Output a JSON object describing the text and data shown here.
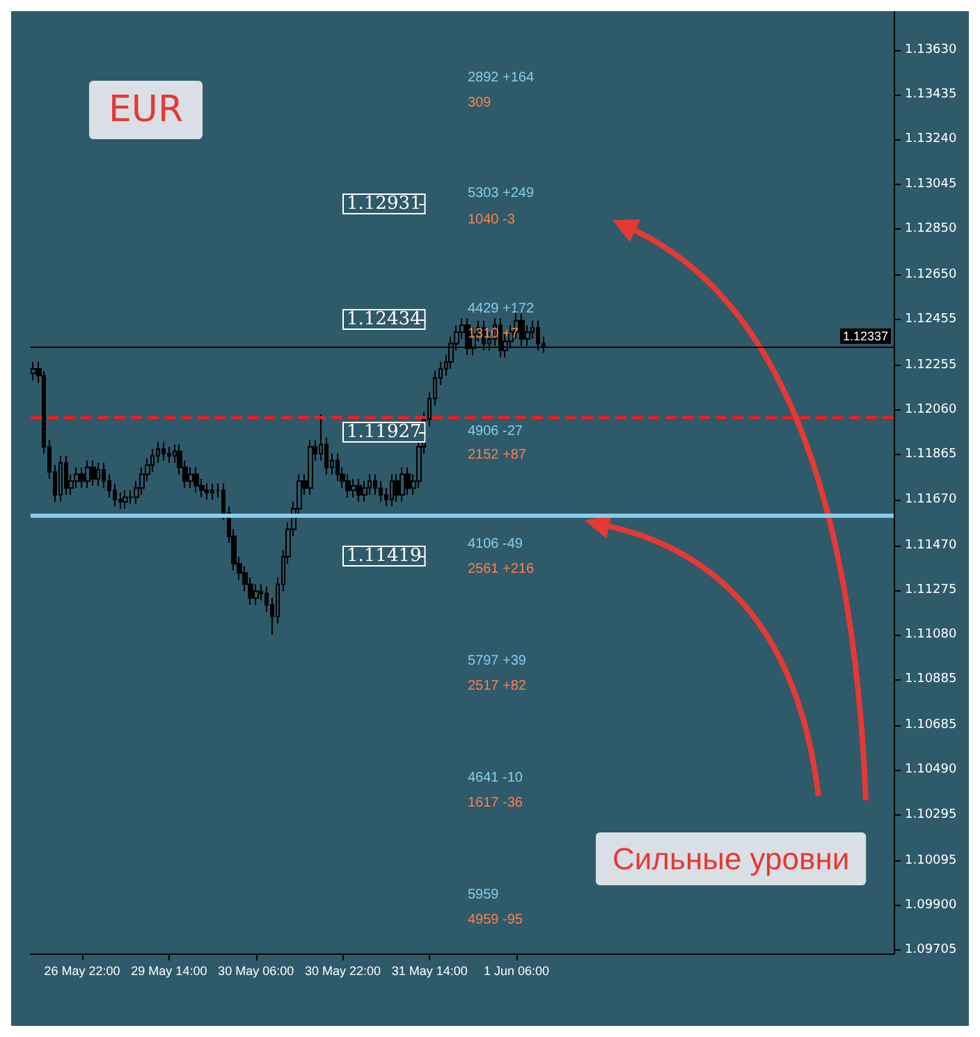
{
  "chart_data": {
    "type": "candlestick",
    "title": "EUR",
    "color": "#000000",
    "grid": false,
    "categories": [
      null,
      null,
      null,
      null,
      null,
      null,
      null,
      null,
      null,
      "26 May 22:00",
      null,
      null,
      null,
      null,
      null,
      null,
      null,
      null,
      null,
      null,
      null,
      null,
      null,
      null,
      null,
      "29 May 14:00",
      null,
      null,
      null,
      null,
      null,
      null,
      null,
      null,
      null,
      null,
      null,
      null,
      null,
      null,
      null,
      "30 May 06:00",
      null,
      null,
      null,
      null,
      null,
      null,
      null,
      null,
      null,
      null,
      null,
      null,
      null,
      null,
      null,
      "30 May 22:00",
      null,
      null,
      null,
      null,
      null,
      null,
      null,
      null,
      null,
      null,
      null,
      null,
      null,
      null,
      null,
      "31 May 14:00",
      null,
      null,
      null,
      null,
      null,
      null,
      null,
      null,
      null,
      null,
      null,
      null,
      null,
      null,
      null,
      "1 Jun 06:00",
      null,
      null,
      null,
      null,
      null,
      null,
      null,
      null,
      null,
      null,
      null,
      null,
      null,
      null,
      null,
      null,
      null,
      null,
      null,
      null,
      null,
      null,
      null,
      null,
      null,
      null,
      null,
      null,
      null,
      null,
      null,
      null,
      null,
      null,
      null,
      null,
      null,
      null,
      null,
      null,
      null,
      null,
      null,
      null,
      null,
      null,
      null,
      null,
      null,
      null,
      null,
      null,
      null,
      null,
      null,
      null,
      null,
      null,
      null,
      null,
      null,
      null,
      null,
      null,
      null,
      null,
      null,
      null,
      null
    ],
    "ohlc": [
      [
        1.1222,
        1.1227,
        1.1219,
        1.1224
      ],
      [
        1.1224,
        1.1227,
        1.1218,
        1.1221
      ],
      [
        1.1221,
        1.1223,
        1.1187,
        1.119
      ],
      [
        1.119,
        1.1193,
        1.1176,
        1.1179
      ],
      [
        1.1179,
        1.1182,
        1.1166,
        1.1169
      ],
      [
        1.1169,
        1.1186,
        1.1166,
        1.1183
      ],
      [
        1.1183,
        1.1186,
        1.1169,
        1.1172
      ],
      [
        1.1172,
        1.1178,
        1.1169,
        1.1175
      ],
      [
        1.1175,
        1.1181,
        1.1172,
        1.1178
      ],
      [
        1.1178,
        1.1181,
        1.1172,
        1.1175
      ],
      [
        1.1175,
        1.1184,
        1.1172,
        1.1181
      ],
      [
        1.1181,
        1.1184,
        1.1173,
        1.1176
      ],
      [
        1.1176,
        1.1183,
        1.1173,
        1.118
      ],
      [
        1.118,
        1.1183,
        1.1172,
        1.1175
      ],
      [
        1.1175,
        1.1178,
        1.1168,
        1.1171
      ],
      [
        1.1171,
        1.1174,
        1.1164,
        1.1167
      ],
      [
        1.1167,
        1.117,
        1.1163,
        1.1166
      ],
      [
        1.1166,
        1.1171,
        1.1163,
        1.1168
      ],
      [
        1.1168,
        1.1171,
        1.1165,
        1.1168
      ],
      [
        1.1168,
        1.1175,
        1.1165,
        1.1172
      ],
      [
        1.1172,
        1.1181,
        1.1169,
        1.1178
      ],
      [
        1.1178,
        1.1185,
        1.1175,
        1.1182
      ],
      [
        1.1182,
        1.1189,
        1.1179,
        1.1186
      ],
      [
        1.1186,
        1.1192,
        1.1183,
        1.1189
      ],
      [
        1.1189,
        1.1192,
        1.1184,
        1.1187
      ],
      [
        1.1187,
        1.119,
        1.1183,
        1.1186
      ],
      [
        1.1186,
        1.1191,
        1.1183,
        1.1188
      ],
      [
        1.1188,
        1.1191,
        1.1178,
        1.1181
      ],
      [
        1.1181,
        1.1184,
        1.1172,
        1.1175
      ],
      [
        1.1175,
        1.1181,
        1.1172,
        1.1178
      ],
      [
        1.1178,
        1.1181,
        1.117,
        1.1173
      ],
      [
        1.1173,
        1.1176,
        1.1168,
        1.1171
      ],
      [
        1.1171,
        1.1174,
        1.1167,
        1.117
      ],
      [
        1.117,
        1.1174,
        1.1167,
        1.1171
      ],
      [
        1.1171,
        1.1174,
        1.1168,
        1.1171
      ],
      [
        1.1171,
        1.1174,
        1.1158,
        1.1161
      ],
      [
        1.1161,
        1.1164,
        1.1148,
        1.1151
      ],
      [
        1.1151,
        1.1154,
        1.1136,
        1.1139
      ],
      [
        1.1139,
        1.1142,
        1.1132,
        1.1135
      ],
      [
        1.1135,
        1.1138,
        1.1127,
        1.113
      ],
      [
        1.113,
        1.1133,
        1.1121,
        1.1124
      ],
      [
        1.1124,
        1.113,
        1.1121,
        1.1127
      ],
      [
        1.1127,
        1.113,
        1.1123,
        1.1126
      ],
      [
        1.1126,
        1.1129,
        1.1118,
        1.1121
      ],
      [
        1.1121,
        1.1124,
        1.1108,
        1.1116
      ],
      [
        1.1116,
        1.1133,
        1.1113,
        1.113
      ],
      [
        1.113,
        1.1145,
        1.1127,
        1.1142
      ],
      [
        1.1142,
        1.1157,
        1.1139,
        1.1154
      ],
      [
        1.1154,
        1.1166,
        1.1151,
        1.1163
      ],
      [
        1.1163,
        1.1178,
        1.116,
        1.1175
      ],
      [
        1.1175,
        1.1178,
        1.1169,
        1.1172
      ],
      [
        1.1172,
        1.1193,
        1.1169,
        1.119
      ],
      [
        1.119,
        1.1193,
        1.1184,
        1.1187
      ],
      [
        1.1187,
        1.1204,
        1.1184,
        1.1191
      ],
      [
        1.1191,
        1.1194,
        1.1178,
        1.1181
      ],
      [
        1.1181,
        1.1187,
        1.1178,
        1.1184
      ],
      [
        1.1184,
        1.1187,
        1.1175,
        1.1178
      ],
      [
        1.1178,
        1.1181,
        1.1172,
        1.1175
      ],
      [
        1.1175,
        1.1178,
        1.1168,
        1.1171
      ],
      [
        1.1171,
        1.1176,
        1.1168,
        1.1173
      ],
      [
        1.1173,
        1.1176,
        1.1166,
        1.1169
      ],
      [
        1.1169,
        1.1175,
        1.1166,
        1.1172
      ],
      [
        1.1172,
        1.1178,
        1.1169,
        1.1175
      ],
      [
        1.1175,
        1.1178,
        1.1169,
        1.1172
      ],
      [
        1.1172,
        1.1175,
        1.1166,
        1.1169
      ],
      [
        1.1169,
        1.1172,
        1.1164,
        1.1167
      ],
      [
        1.1167,
        1.1178,
        1.1164,
        1.1175
      ],
      [
        1.1175,
        1.1178,
        1.1166,
        1.1169
      ],
      [
        1.1169,
        1.1181,
        1.1166,
        1.1178
      ],
      [
        1.1178,
        1.1181,
        1.1169,
        1.1172
      ],
      [
        1.1172,
        1.1178,
        1.1169,
        1.1175
      ],
      [
        1.1175,
        1.1193,
        1.1172,
        1.119
      ],
      [
        1.119,
        1.1205,
        1.1187,
        1.1202
      ],
      [
        1.1202,
        1.1214,
        1.1199,
        1.1211
      ],
      [
        1.1211,
        1.1223,
        1.1208,
        1.122
      ],
      [
        1.122,
        1.1227,
        1.1217,
        1.1224
      ],
      [
        1.1224,
        1.123,
        1.1221,
        1.1227
      ],
      [
        1.1227,
        1.1238,
        1.1224,
        1.1235
      ],
      [
        1.1235,
        1.1243,
        1.1232,
        1.124
      ],
      [
        1.124,
        1.1246,
        1.1237,
        1.1243
      ],
      [
        1.1243,
        1.1246,
        1.123,
        1.1233
      ],
      [
        1.1233,
        1.1242,
        1.123,
        1.1239
      ],
      [
        1.1239,
        1.1245,
        1.1236,
        1.1242
      ],
      [
        1.1242,
        1.1245,
        1.1232,
        1.1235
      ],
      [
        1.1235,
        1.124,
        1.1232,
        1.1237
      ],
      [
        1.1237,
        1.1246,
        1.1234,
        1.1243
      ],
      [
        1.1243,
        1.1246,
        1.1229,
        1.1232
      ],
      [
        1.1232,
        1.1239,
        1.1229,
        1.1236
      ],
      [
        1.1236,
        1.1243,
        1.1233,
        1.124
      ],
      [
        1.124,
        1.125,
        1.1237,
        1.1245
      ],
      [
        1.1245,
        1.1248,
        1.1234,
        1.1237
      ],
      [
        1.1237,
        1.1243,
        1.1234,
        1.124
      ],
      [
        1.124,
        1.1245,
        1.1237,
        1.1242
      ],
      [
        1.1242,
        1.1245,
        1.1232,
        1.1235
      ],
      [
        1.1235,
        1.1238,
        1.1231,
        1.1234
      ],
      null,
      null,
      null,
      null,
      null,
      null,
      null,
      null,
      null,
      null,
      null,
      null,
      null,
      null,
      null,
      null,
      null,
      null,
      null,
      null,
      null,
      null,
      null,
      null,
      null,
      null,
      null,
      null,
      null,
      null,
      null,
      null,
      null,
      null,
      null,
      null,
      null,
      null,
      null,
      null,
      null,
      null,
      null,
      null,
      null,
      null,
      null,
      null,
      null,
      null,
      null,
      null,
      null,
      null,
      null,
      null,
      null,
      null,
      null,
      null,
      null,
      null,
      null,
      null
    ],
    "ylim": [
      1.0969,
      1.138
    ],
    "yticks": [
      1.09705,
      {
        "value": 1.099,
        "label": "1.09900"
      },
      1.10095,
      1.10295,
      {
        "value": 1.1049,
        "label": "1.10490"
      },
      1.10685,
      1.10885,
      {
        "value": 1.1108,
        "label": "1.11080"
      },
      1.11275,
      {
        "value": 1.1147,
        "label": "1.11470"
      },
      {
        "value": 1.1167,
        "label": "1.11670"
      },
      1.11865,
      {
        "value": 1.1206,
        "label": "1.12060"
      },
      1.12255,
      1.12455,
      {
        "value": 1.1265,
        "label": "1.12650"
      },
      {
        "value": 1.1285,
        "label": "1.12850"
      },
      1.13045,
      {
        "value": 1.1324,
        "label": "1.13240"
      },
      1.13435,
      {
        "value": 1.1363,
        "label": "1.13630"
      }
    ],
    "ref_lines": [
      {
        "axis": "y",
        "value": 1.1203,
        "color": "#ff1a1a",
        "line_style": "dashed"
      },
      {
        "axis": "y",
        "value": 1.116,
        "color": "#87ceeb",
        "line_style": "solid"
      },
      {
        "axis": "y",
        "value": 1.12337,
        "color": "#000000",
        "line_style": "solid",
        "label": "1.12337"
      }
    ],
    "annotations": [
      "1.12931",
      "1.12434",
      "1.11927",
      "1.11419",
      "2892 +164",
      "309",
      "5303 +249",
      "1040 -3",
      "4429 +172",
      "1310 +7",
      "4906 -27",
      "2152 +87",
      "4106 -49",
      "2561 +216",
      "5797 +39",
      "2517 +82",
      "4641 -10",
      "1617 -36",
      "5959",
      "4959 -95",
      "Сильные уровни"
    ]
  }
}
